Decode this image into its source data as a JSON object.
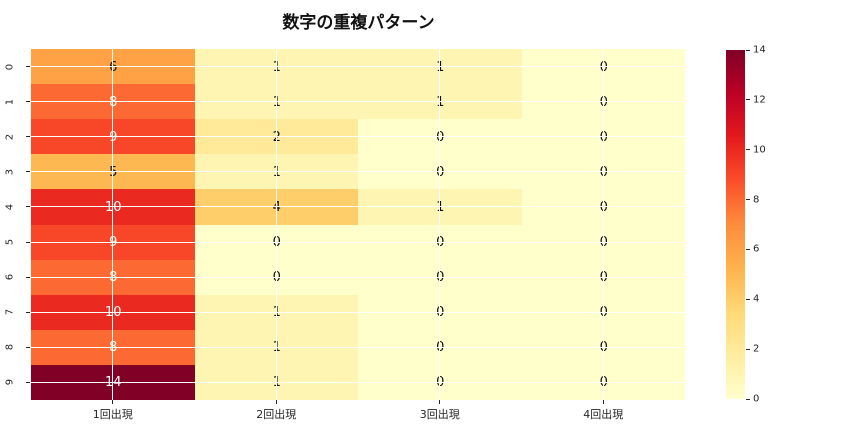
{
  "title": "数字の重複パターン",
  "chart_data": {
    "type": "heatmap",
    "title": "数字の重複パターン",
    "x_tick_labels": [
      "1回出現",
      "2回出現",
      "3回出現",
      "4回出現"
    ],
    "y_tick_labels": [
      "0",
      "1",
      "2",
      "3",
      "4",
      "5",
      "6",
      "7",
      "8",
      "9"
    ],
    "values": [
      [
        6,
        1,
        1,
        0
      ],
      [
        8,
        1,
        1,
        0
      ],
      [
        9,
        2,
        0,
        0
      ],
      [
        5,
        1,
        0,
        0
      ],
      [
        10,
        4,
        1,
        0
      ],
      [
        9,
        0,
        0,
        0
      ],
      [
        8,
        0,
        0,
        0
      ],
      [
        10,
        1,
        0,
        0
      ],
      [
        8,
        1,
        0,
        0
      ],
      [
        14,
        1,
        0,
        0
      ]
    ],
    "vmin": 0,
    "vmax": 14,
    "colormap": "YlOrRd",
    "background": "#ffffff",
    "grid_color": "#ffffff",
    "annotation_dark_text_color": "#111111",
    "annotation_light_text_color": "#ffffff",
    "annotation_white_text_values": [
      8,
      9,
      10,
      14
    ],
    "value_colors": {
      "0": "#ffffcc",
      "1": "#fff5b3",
      "2": "#ffea9a",
      "4": "#fece6a",
      "5": "#feb852",
      "6": "#fea245",
      "8": "#fc6932",
      "9": "#f84728",
      "10": "#ea2920",
      "14": "#800026"
    },
    "colorbar": {
      "position": "right",
      "ticks": [
        "0",
        "2",
        "4",
        "6",
        "8",
        "10",
        "12",
        "14"
      ],
      "gradient_stops": [
        "#ffffcc",
        "#ffeda0",
        "#fed976",
        "#feb24c",
        "#fd8d3c",
        "#fc4e2a",
        "#e31a1c",
        "#bd0026",
        "#800026"
      ]
    },
    "grid": true,
    "legend": false
  }
}
